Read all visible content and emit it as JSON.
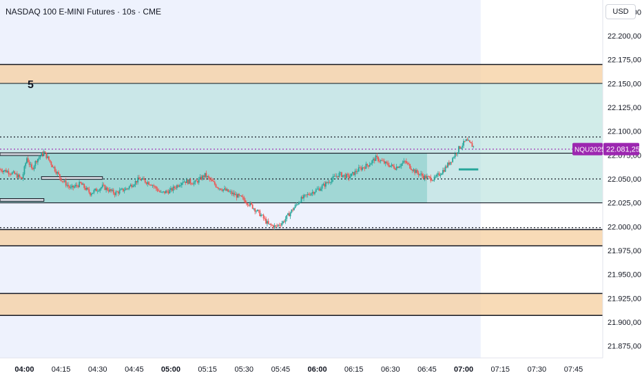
{
  "header": {
    "title": "NASDAQ 100 E-MINI Futures · 10s · CME"
  },
  "scale": {
    "currency": "USD"
  },
  "chart_data": {
    "type": "candlestick",
    "ylim": [
      21862.5,
      22237.5
    ],
    "x_ticks": [
      "04:00",
      "04:15",
      "04:30",
      "04:45",
      "05:00",
      "05:15",
      "05:30",
      "05:45",
      "06:00",
      "06:15",
      "06:30",
      "06:45",
      "07:00",
      "07:15",
      "07:30",
      "07:45"
    ],
    "x_tick_values": [
      0,
      15,
      30,
      45,
      60,
      75,
      90,
      105,
      120,
      135,
      150,
      165,
      180,
      195,
      210,
      225
    ],
    "x_range": [
      -10,
      237
    ],
    "y_ticks": [
      {
        "v": 22225,
        "label": "22.225,00"
      },
      {
        "v": 22200,
        "label": "22.200,00"
      },
      {
        "v": 22175,
        "label": "22.175,00"
      },
      {
        "v": 22150,
        "label": "22.150,00"
      },
      {
        "v": 22125,
        "label": "22.125,00"
      },
      {
        "v": 22100,
        "label": "22.100,00"
      },
      {
        "v": 22050,
        "label": "22.050,00"
      },
      {
        "v": 22025,
        "label": "22.025,00"
      },
      {
        "v": 22000,
        "label": "22.000,00"
      },
      {
        "v": 21975,
        "label": "21.975,00"
      },
      {
        "v": 21950,
        "label": "21.950,00"
      },
      {
        "v": 21925,
        "label": "21.925,00"
      },
      {
        "v": 21900,
        "label": "21.900,00"
      },
      {
        "v": 21875,
        "label": "21.875,00"
      }
    ],
    "partial_tick": {
      "v": 22075,
      "label": "22.075,00"
    },
    "price_series": [
      [
        -10,
        22060
      ],
      [
        -7,
        22058
      ],
      [
        -4,
        22055
      ],
      [
        -1,
        22050
      ],
      [
        1,
        22072
      ],
      [
        3,
        22060
      ],
      [
        5,
        22070
      ],
      [
        8,
        22078
      ],
      [
        12,
        22062
      ],
      [
        15,
        22050
      ],
      [
        19,
        22040
      ],
      [
        23,
        22045
      ],
      [
        27,
        22035
      ],
      [
        32,
        22042
      ],
      [
        37,
        22035
      ],
      [
        42,
        22040
      ],
      [
        47,
        22050
      ],
      [
        52,
        22045
      ],
      [
        56,
        22035
      ],
      [
        60,
        22038
      ],
      [
        65,
        22048
      ],
      [
        70,
        22046
      ],
      [
        74,
        22054
      ],
      [
        79,
        22042
      ],
      [
        84,
        22036
      ],
      [
        89,
        22030
      ],
      [
        93,
        22022
      ],
      [
        97,
        22012
      ],
      [
        100,
        22002
      ],
      [
        103,
        22000
      ],
      [
        106,
        22005
      ],
      [
        109,
        22015
      ],
      [
        113,
        22028
      ],
      [
        117,
        22035
      ],
      [
        121,
        22040
      ],
      [
        125,
        22048
      ],
      [
        129,
        22055
      ],
      [
        133,
        22052
      ],
      [
        137,
        22060
      ],
      [
        141,
        22065
      ],
      [
        144,
        22072
      ],
      [
        148,
        22066
      ],
      [
        152,
        22062
      ],
      [
        156,
        22068
      ],
      [
        160,
        22058
      ],
      [
        164,
        22052
      ],
      [
        168,
        22050
      ],
      [
        172,
        22060
      ],
      [
        175,
        22070
      ],
      [
        178,
        22082
      ],
      [
        181,
        22090
      ],
      [
        184,
        22084
      ]
    ],
    "last_price": {
      "symbol": "NQU2025",
      "value": 22081.25,
      "label": "22.081,25"
    },
    "zones": [
      {
        "kind": "supply",
        "y_low": 22150,
        "y_high": 22170
      },
      {
        "kind": "range",
        "y_low": 22025,
        "y_high": 22150
      },
      {
        "kind": "demand",
        "y_low": 21980,
        "y_high": 21997
      },
      {
        "kind": "demand",
        "y_low": 21907,
        "y_high": 21930
      }
    ],
    "zone_label": "5",
    "value_area": {
      "x_start": -10,
      "x_end": 165,
      "y_low": 22025,
      "y_high": 22077
    },
    "levels": {
      "dotted": [
        22094,
        22081.25,
        22050,
        21999
      ],
      "solid": [
        22025,
        22077
      ]
    },
    "session_highlight_end": 187
  }
}
